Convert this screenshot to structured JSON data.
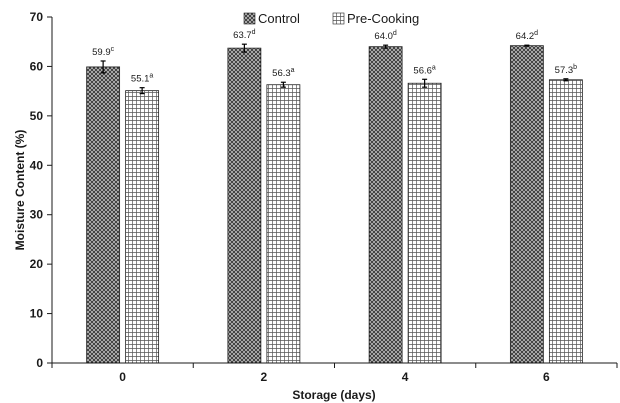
{
  "chart_data": {
    "type": "bar",
    "title": "",
    "xlabel": "Storage (days)",
    "ylabel": "Moisture Content (%)",
    "ylim": [
      0,
      70
    ],
    "yticks": [
      0,
      10,
      20,
      30,
      40,
      50,
      60,
      70
    ],
    "categories": [
      "0",
      "2",
      "4",
      "6"
    ],
    "legend_position": "top-center",
    "grid": false,
    "series": [
      {
        "name": "Control",
        "values": [
          59.9,
          63.7,
          64.0,
          64.2
        ],
        "errors": [
          1.2,
          0.8,
          0.3,
          0.1
        ],
        "labels": [
          "59.9",
          "63.7",
          "64.0",
          "64.2"
        ],
        "superscripts": [
          "c",
          "d",
          "d",
          "d"
        ],
        "pattern": "crosshatch-dark"
      },
      {
        "name": "Pre-Cooking",
        "values": [
          55.1,
          56.3,
          56.6,
          57.3
        ],
        "errors": [
          0.6,
          0.5,
          0.8,
          0.2
        ],
        "labels": [
          "55.1",
          "56.3",
          "56.6",
          "57.3"
        ],
        "superscripts": [
          "a",
          "a",
          "a",
          "b"
        ],
        "pattern": "grid-light"
      }
    ]
  }
}
